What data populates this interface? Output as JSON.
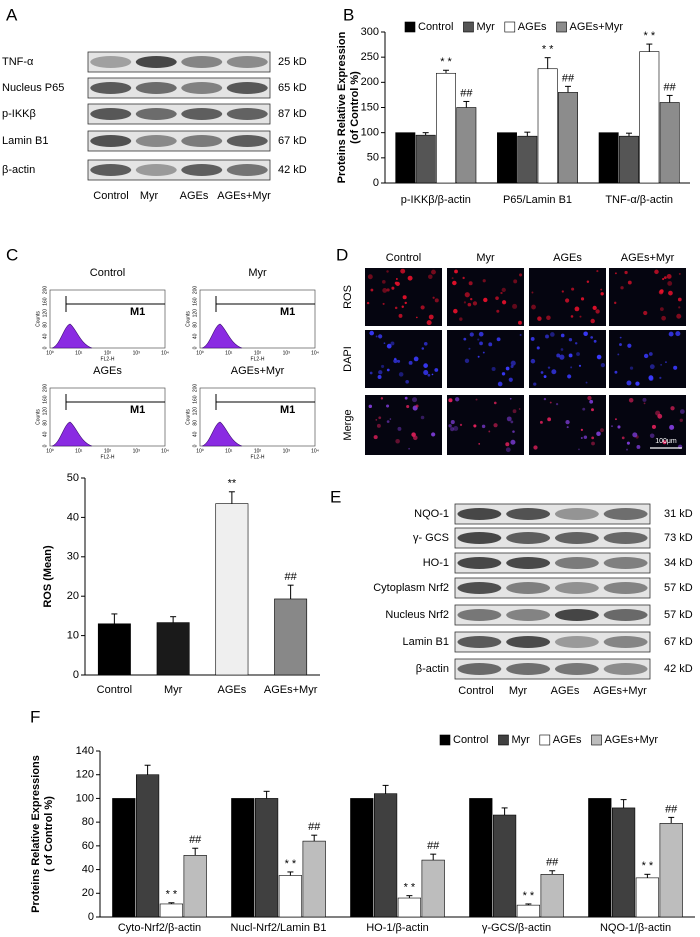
{
  "panel_labels": [
    "A",
    "B",
    "C",
    "D",
    "E",
    "F"
  ],
  "blot_a": {
    "rows": [
      "TNF-α",
      "Nucleus P65",
      "p-IKKβ",
      "Lamin B1",
      "β-actin"
    ],
    "sizes": [
      "25 kD",
      "65 kD",
      "87 kD",
      "67 kD",
      "42 kD"
    ],
    "lanes": [
      "Control",
      "Myr",
      "AGEs",
      "AGEs+Myr"
    ]
  },
  "flow_c": {
    "panels": [
      "Control",
      "Myr",
      "AGEs",
      "AGEs+Myr"
    ],
    "gate": "M1",
    "ylabel": "Counts",
    "xlabel": "FL2-H",
    "yticks": [
      "0",
      "40",
      "80",
      "120",
      "160",
      "200"
    ],
    "xticks": [
      "10⁰",
      "10¹",
      "10²",
      "10³",
      "10⁴"
    ]
  },
  "images_d": {
    "columns": [
      "Control",
      "Myr",
      "AGEs",
      "AGEs+Myr"
    ],
    "rows": [
      "ROS",
      "DAPI",
      "Merge"
    ],
    "scale_bar": "100μm"
  },
  "blot_e": {
    "rows": [
      "NQO-1",
      "γ- GCS",
      "HO-1",
      "Cytoplasm Nrf2",
      "Nucleus Nrf2",
      "Lamin B1",
      "β-actin"
    ],
    "sizes": [
      "31 kD",
      "73 kD",
      "34 kD",
      "57 kD",
      "57 kD",
      "67 kD",
      "42 kD"
    ],
    "lanes": [
      "Control",
      "Myr",
      "AGEs",
      "AGEs+Myr"
    ]
  },
  "chart_data": [
    {
      "type": "bar",
      "ylabel": [
        "Proteins Relative Expression",
        "(of Control %)"
      ],
      "categories": [
        "p-IKKβ/β-actin",
        "P65/Lamin B1",
        "TNF-α/β-actin"
      ],
      "ylim": [
        0,
        300
      ],
      "yticks": [
        0,
        50,
        100,
        150,
        200,
        250,
        300
      ],
      "series": [
        {
          "name": "Control",
          "color": "#000000",
          "values": [
            100,
            100,
            100
          ],
          "errors": [
            0,
            0,
            0
          ]
        },
        {
          "name": "Myr",
          "color": "#555555",
          "values": [
            95,
            93,
            93
          ],
          "errors": [
            5,
            8,
            6
          ]
        },
        {
          "name": "AGEs",
          "color": "#ffffff",
          "values": [
            218,
            227,
            261
          ],
          "errors": [
            6,
            22,
            15
          ],
          "annotations": [
            "* *",
            "* *",
            "* *"
          ]
        },
        {
          "name": "AGEs+Myr",
          "color": "#8c8c8c",
          "values": [
            150,
            180,
            160
          ],
          "errors": [
            12,
            12,
            14
          ],
          "annotations": [
            "##",
            "##",
            "##"
          ]
        }
      ]
    },
    {
      "type": "bar",
      "ylabel": [
        "ROS (Mean)"
      ],
      "categories": [
        "Control",
        "Myr",
        "AGEs",
        "AGEs+Myr"
      ],
      "ylim": [
        0,
        50
      ],
      "yticks": [
        0,
        10,
        20,
        30,
        40,
        50
      ],
      "values": [
        13,
        13.3,
        43.5,
        19.3
      ],
      "errors": [
        2.5,
        1.5,
        3,
        3.5
      ],
      "colors": [
        "#000000",
        "#1a1a1a",
        "#efefef",
        "#888888"
      ],
      "annotations": [
        null,
        null,
        "**",
        "##"
      ]
    },
    {
      "type": "bar",
      "ylabel": [
        "Proteins Relative Expressions",
        "( of Control %)"
      ],
      "categories": [
        "Cyto-Nrf2/β-actin",
        "Nucl-Nrf2/Lamin B1",
        "HO-1/β-actin",
        "γ-GCS/β-actin",
        "NQO-1/β-actin"
      ],
      "ylim": [
        0,
        140
      ],
      "yticks": [
        0,
        20,
        40,
        60,
        80,
        100,
        120,
        140
      ],
      "series": [
        {
          "name": "Control",
          "color": "#000000",
          "values": [
            100,
            100,
            100,
            100,
            100
          ],
          "errors": [
            0,
            0,
            0,
            0,
            0
          ]
        },
        {
          "name": "Myr",
          "color": "#404040",
          "values": [
            120,
            100,
            104,
            86,
            92
          ],
          "errors": [
            8,
            6,
            7,
            6,
            7
          ]
        },
        {
          "name": "AGEs",
          "color": "#ffffff",
          "values": [
            11,
            35,
            16,
            10,
            33
          ],
          "errors": [
            1,
            3,
            2,
            1,
            3
          ],
          "annotations": [
            "* *",
            "* *",
            "* *",
            "* *",
            "* *"
          ]
        },
        {
          "name": "AGEs+Myr",
          "color": "#bdbdbd",
          "values": [
            52,
            64,
            48,
            36,
            79
          ],
          "errors": [
            6,
            5,
            5,
            3,
            5
          ],
          "annotations": [
            "##",
            "##",
            "##",
            "##",
            "##"
          ]
        }
      ]
    }
  ]
}
